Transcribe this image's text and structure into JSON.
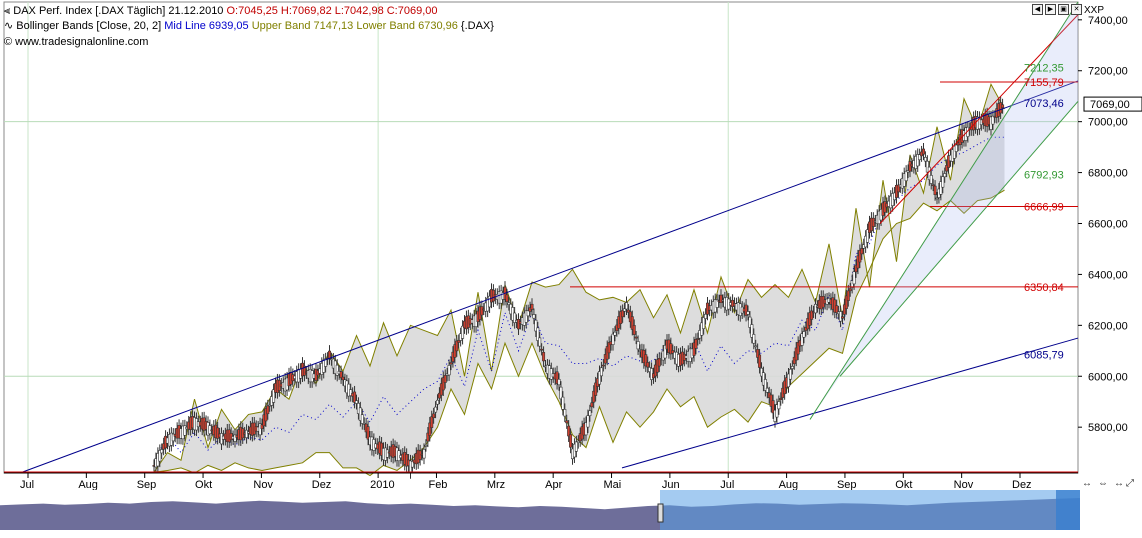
{
  "header": {
    "line1_symbol": "DAX Perf. Index [.DAX  Täglich]",
    "line1_date": "21.12.2010",
    "line1_ohlc": "O:7045,25 H:7069,82 L:7042,98 C:7069,00",
    "line2_name": "Bollinger Bands [Close, 20, 2]",
    "line2_mid": "Mid Line 6939,05",
    "line2_upper": "Upper Band 7147,13",
    "line2_lower": "Lower Band 6730,96",
    "line2_symbol": "{.DAX}",
    "line3_copyright": "© www.tradesignalonline.com",
    "right_label": "XXP"
  },
  "colors": {
    "upper_band": "#808000",
    "mid_line": "#0000cc",
    "channel_blue": "#00008b",
    "horizontal_red": "#d00000",
    "green_channel": "#339933",
    "band_fill": "#d9d9d9",
    "current_price_box": "#ffffff"
  },
  "chart_data": {
    "type": "line",
    "title": "DAX Perf. Index [.DAX  Täglich]",
    "x_tick_labels": [
      "Jul",
      "Aug",
      "Sep",
      "Okt",
      "Nov",
      "Dez",
      "2010",
      "Feb",
      "Mrz",
      "Apr",
      "Mai",
      "Jun",
      "Jul",
      "Aug",
      "Sep",
      "Okt",
      "Nov",
      "Dez"
    ],
    "y_tick_labels": [
      "5800,00",
      "6000,00",
      "6200,00",
      "6400,00",
      "6600,00",
      "6800,00",
      "7000,00",
      "7200,00",
      "7400,00"
    ],
    "ylim": [
      5620,
      7470
    ],
    "current_price": "7069,00",
    "price_labels": [
      {
        "label": "7212,35",
        "color": "#339933"
      },
      {
        "label": "7155,79",
        "color": "#d00000"
      },
      {
        "label": "7073,46",
        "color": "#00008b"
      },
      {
        "label": "6792,93",
        "color": "#339933"
      },
      {
        "label": "6666,99",
        "color": "#d00000"
      },
      {
        "label": "6350,84",
        "color": "#d00000"
      },
      {
        "label": "6085,79",
        "color": "#00008b"
      }
    ],
    "series": [
      {
        "name": "Upper Band",
        "values": [
          [
            5623,
            5700
          ],
          [
            5670,
            5910
          ],
          [
            5720,
            5870
          ],
          [
            5790,
            5850
          ],
          [
            5860,
            5950
          ],
          [
            5910,
            6050
          ],
          [
            5970,
            6100
          ],
          [
            6020,
            6160
          ],
          [
            6040,
            6210
          ],
          [
            6080,
            6200
          ],
          [
            6180,
            6160
          ],
          [
            6260,
            6000
          ],
          [
            6330,
            6020
          ],
          [
            6360,
            6200
          ],
          [
            6370,
            6350
          ],
          [
            6360,
            6420
          ],
          [
            6330,
            6300
          ],
          [
            6310,
            6290
          ],
          [
            6340,
            6230
          ],
          [
            6320,
            6170
          ],
          [
            6340,
            6170
          ],
          [
            6390,
            6250
          ],
          [
            6380,
            6310
          ],
          [
            6360,
            6310
          ],
          [
            6420,
            6290
          ],
          [
            6520,
            6230
          ],
          [
            6660,
            6350
          ],
          [
            6770,
            6450
          ],
          [
            6870,
            6720
          ],
          [
            6980,
            6770
          ],
          [
            7090,
            6970
          ],
          [
            7147,
            7050
          ]
        ]
      },
      {
        "name": "Lower Band",
        "values": [
          [
            5623,
            5630
          ],
          [
            5640,
            5620
          ],
          [
            5650,
            5630
          ],
          [
            5660,
            5640
          ],
          [
            5630,
            5640
          ],
          [
            5650,
            5660
          ],
          [
            5700,
            5700
          ],
          [
            5640,
            5640
          ],
          [
            5610,
            5650
          ],
          [
            5630,
            5670
          ],
          [
            5720,
            5800
          ],
          [
            5950,
            5850
          ],
          [
            6050,
            5950
          ],
          [
            6130,
            6000
          ],
          [
            6130,
            6000
          ],
          [
            5900,
            5770
          ],
          [
            5720,
            5880
          ],
          [
            5740,
            5860
          ],
          [
            5800,
            5860
          ],
          [
            5950,
            5880
          ],
          [
            5920,
            5800
          ],
          [
            5840,
            5870
          ],
          [
            5820,
            5900
          ],
          [
            5880,
            5960
          ],
          [
            6010,
            6060
          ],
          [
            6110,
            6090
          ],
          [
            6310,
            6420
          ],
          [
            6540,
            6600
          ],
          [
            6620,
            6680
          ],
          [
            6650,
            6690
          ],
          [
            6640,
            6690
          ],
          [
            6700,
            6731
          ]
        ]
      },
      {
        "name": "Mid Line",
        "values": [
          [
            5660,
            5770
          ],
          [
            5700,
            5780
          ],
          [
            5710,
            5760
          ],
          [
            5730,
            5760
          ],
          [
            5750,
            5800
          ],
          [
            5780,
            5850
          ],
          [
            5830,
            5890
          ],
          [
            5840,
            5900
          ],
          [
            5820,
            5920
          ],
          [
            5850,
            5900
          ],
          [
            5950,
            5980
          ],
          [
            6080,
            5960
          ],
          [
            6180,
            6020
          ],
          [
            6250,
            6100
          ],
          [
            6250,
            6130
          ],
          [
            6120,
            6050
          ],
          [
            6050,
            6070
          ],
          [
            6040,
            6080
          ],
          [
            6060,
            6060
          ],
          [
            6130,
            6040
          ],
          [
            6140,
            6020
          ],
          [
            6120,
            6050
          ],
          [
            6100,
            6090
          ],
          [
            6130,
            6120
          ],
          [
            6220,
            6180
          ],
          [
            6320,
            6180
          ],
          [
            6480,
            6520
          ],
          [
            6650,
            6690
          ],
          [
            6740,
            6770
          ],
          [
            6830,
            6860
          ],
          [
            6880,
            6910
          ],
          [
            6939,
            6939
          ]
        ]
      },
      {
        "name": "Price",
        "values": [
          [
            5650,
            5750
          ],
          [
            5780,
            5820
          ],
          [
            5800,
            5760
          ],
          [
            5760,
            5780
          ],
          [
            5800,
            5950
          ],
          [
            5980,
            6020
          ],
          [
            6000,
            6080
          ],
          [
            5990,
            5900
          ],
          [
            5750,
            5700
          ],
          [
            5700,
            5650
          ],
          [
            5700,
            5900
          ],
          [
            6050,
            6200
          ],
          [
            6230,
            6310
          ],
          [
            6320,
            6200
          ],
          [
            6270,
            6040
          ],
          [
            5980,
            5700
          ],
          [
            5800,
            6000
          ],
          [
            6150,
            6280
          ],
          [
            6100,
            6000
          ],
          [
            6120,
            6060
          ],
          [
            6100,
            6260
          ],
          [
            6300,
            6280
          ],
          [
            6250,
            6020
          ],
          [
            5850,
            5990
          ],
          [
            6150,
            6270
          ],
          [
            6300,
            6230
          ],
          [
            6420,
            6580
          ],
          [
            6650,
            6720
          ],
          [
            6820,
            6880
          ],
          [
            6700,
            6860
          ],
          [
            6950,
            7000
          ],
          [
            7000,
            7069
          ]
        ]
      }
    ],
    "overview_values": [
      0.62,
      0.64,
      0.66,
      0.63,
      0.65,
      0.68,
      0.66,
      0.7,
      0.72,
      0.69,
      0.66,
      0.7,
      0.73,
      0.71,
      0.68,
      0.7,
      0.72,
      0.67,
      0.64,
      0.66,
      0.63,
      0.6,
      0.62,
      0.59,
      0.57,
      0.6,
      0.58,
      0.55,
      0.52,
      0.56,
      0.6,
      0.62,
      0.58,
      0.6,
      0.64,
      0.67,
      0.66,
      0.63,
      0.65,
      0.67,
      0.66,
      0.64,
      0.62,
      0.65,
      0.68,
      0.7,
      0.72,
      0.74,
      0.76,
      0.78,
      0.8
    ]
  }
}
